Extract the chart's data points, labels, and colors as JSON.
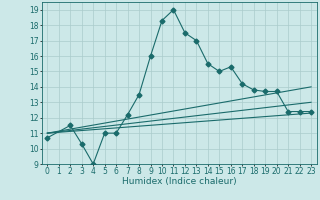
{
  "xlabel": "Humidex (Indice chaleur)",
  "background_color": "#cce8e8",
  "grid_color": "#aacccc",
  "line_color": "#1a6b6b",
  "xlim": [
    -0.5,
    23.5
  ],
  "ylim": [
    9,
    19.5
  ],
  "yticks": [
    9,
    10,
    11,
    12,
    13,
    14,
    15,
    16,
    17,
    18,
    19
  ],
  "xticks": [
    0,
    1,
    2,
    3,
    4,
    5,
    6,
    7,
    8,
    9,
    10,
    11,
    12,
    13,
    14,
    15,
    16,
    17,
    18,
    19,
    20,
    21,
    22,
    23
  ],
  "main_x": [
    0,
    2,
    3,
    4,
    5,
    6,
    7,
    8,
    9,
    10,
    11,
    12,
    13,
    14,
    15,
    16,
    17,
    18,
    19,
    20,
    21,
    22,
    23
  ],
  "main_y": [
    10.7,
    11.5,
    10.3,
    9.0,
    11.0,
    11.0,
    12.2,
    13.5,
    16.0,
    18.3,
    19.0,
    17.5,
    17.0,
    15.5,
    15.0,
    15.3,
    14.2,
    13.8,
    13.7,
    13.7,
    12.4,
    12.4,
    12.4
  ],
  "line1_x": [
    0,
    23
  ],
  "line1_y": [
    11.0,
    14.0
  ],
  "line2_x": [
    0,
    23
  ],
  "line2_y": [
    11.0,
    13.0
  ],
  "line3_x": [
    0,
    23
  ],
  "line3_y": [
    11.0,
    12.3
  ],
  "tick_fontsize": 5.5,
  "label_fontsize": 6.5
}
